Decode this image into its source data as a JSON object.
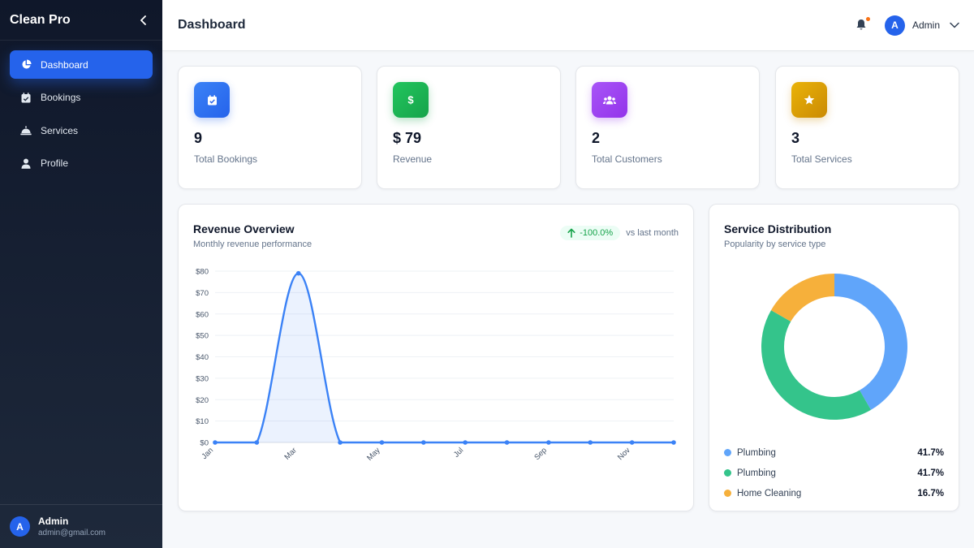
{
  "sidebar": {
    "brand": "Clean Pro",
    "items": [
      {
        "label": "Dashboard",
        "icon": "pie-chart-icon"
      },
      {
        "label": "Bookings",
        "icon": "calendar-check-icon"
      },
      {
        "label": "Services",
        "icon": "service-bell-icon"
      },
      {
        "label": "Profile",
        "icon": "user-icon"
      }
    ],
    "user": {
      "initial": "A",
      "name": "Admin",
      "email": "admin@gmail.com"
    }
  },
  "header": {
    "title": "Dashboard",
    "user_initial": "A",
    "user_name": "Admin"
  },
  "stats": [
    {
      "value": "9",
      "label": "Total Bookings",
      "icon": "calendar-check-icon",
      "color": "#2563eb"
    },
    {
      "value": "$ 79",
      "label": "Revenue",
      "icon": "dollar-icon",
      "color": "#16a34a"
    },
    {
      "value": "2",
      "label": "Total Customers",
      "icon": "users-icon",
      "color": "#9333ea"
    },
    {
      "value": "3",
      "label": "Total Services",
      "icon": "star-icon",
      "color": "#ca8a04"
    }
  ],
  "revenue": {
    "title": "Revenue Overview",
    "subtitle": "Monthly revenue performance",
    "trend": "-100.0%",
    "trend_note": "vs last month"
  },
  "distribution": {
    "title": "Service Distribution",
    "subtitle": "Popularity by service type"
  },
  "chart_data": [
    {
      "type": "area",
      "title": "Revenue Overview",
      "x": [
        "Jan",
        "Feb",
        "Mar",
        "Apr",
        "May",
        "Jun",
        "Jul",
        "Aug",
        "Sep",
        "Oct",
        "Nov",
        "Dec"
      ],
      "x_tick_labels": [
        "Jan",
        "Mar",
        "May",
        "Jul",
        "Sep",
        "Nov"
      ],
      "values": [
        0,
        0,
        79,
        0,
        0,
        0,
        0,
        0,
        0,
        0,
        0,
        0
      ],
      "y_ticks": [
        "$0",
        "$10",
        "$20",
        "$30",
        "$40",
        "$50",
        "$60",
        "$70",
        "$80"
      ],
      "ylim": [
        0,
        80
      ],
      "grid": true,
      "color": "#3b82f6"
    },
    {
      "type": "pie",
      "title": "Service Distribution",
      "labels": [
        "Plumbing",
        "Plumbing",
        "Home Cleaning"
      ],
      "values": [
        41.7,
        41.7,
        16.7
      ],
      "display_pct": [
        "41.7%",
        "41.7%",
        "16.7%"
      ],
      "colors": [
        "#60a5fa",
        "#34c48b",
        "#f6b03b"
      ],
      "legend": "bottom"
    }
  ]
}
